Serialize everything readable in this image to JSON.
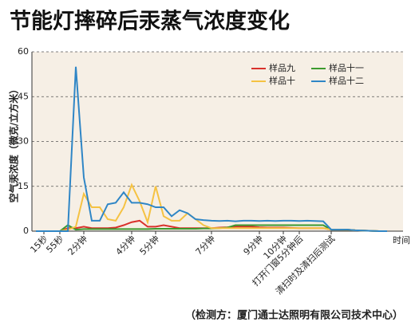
{
  "chart_data": {
    "type": "line",
    "title": "节能灯摔碎后汞蒸气浓度变化",
    "y_label": "空气汞浓度（微克/立方米）",
    "x_label": "时间",
    "footnote": "（检测方：厦门通士达照明有限公司技术中心）",
    "categories": [
      null,
      "15秒",
      null,
      "55秒",
      null,
      null,
      "2分钟",
      null,
      null,
      null,
      null,
      null,
      "4分钟",
      null,
      null,
      "5分钟",
      null,
      null,
      null,
      null,
      null,
      null,
      "7分钟",
      null,
      null,
      null,
      null,
      null,
      "9分钟",
      null,
      null,
      "10分钟",
      null,
      "打开门窗5分钟后",
      null,
      null,
      null,
      "清扫时及清扫后测试",
      null,
      null,
      null,
      null,
      null,
      null,
      null
    ],
    "series": [
      {
        "name": "样品九",
        "color": "#d9312b",
        "values": [
          0,
          0,
          0,
          0,
          1,
          1,
          1.5,
          1,
          1,
          1,
          1.2,
          2,
          3,
          3.5,
          1.5,
          1.5,
          2,
          1.5,
          1,
          1,
          1,
          1,
          1,
          1.2,
          1.3,
          1.5,
          1.5,
          1.5,
          1.3,
          1.2,
          1.2,
          1.2,
          1.1,
          1,
          1,
          1,
          1,
          0.5,
          0.5,
          0.5,
          0.3,
          0.2,
          0.1,
          0,
          0
        ]
      },
      {
        "name": "样品十一",
        "color": "#3c9a2e",
        "values": [
          0,
          0,
          0,
          0,
          2,
          0.5,
          0.7,
          0.7,
          0.7,
          0.7,
          0.7,
          0.7,
          0.7,
          0.7,
          0.7,
          0.8,
          0.8,
          0.8,
          0.8,
          0.8,
          0.8,
          0.9,
          0.9,
          1,
          1.2,
          2,
          2,
          2,
          2,
          2,
          2,
          2,
          2,
          2,
          2,
          2,
          2,
          0.5,
          0.5,
          0.5,
          0.3,
          0.2,
          0.1,
          0,
          0
        ]
      },
      {
        "name": "样品十",
        "color": "#f5c242",
        "values": [
          0,
          0,
          0,
          0,
          0.5,
          1.5,
          12.5,
          8,
          8,
          4,
          3.5,
          8,
          15.5,
          10,
          3,
          15,
          5,
          3.5,
          3.5,
          6,
          4,
          2,
          1,
          1,
          1,
          1,
          1,
          1,
          1,
          1,
          1,
          1,
          1,
          1,
          1,
          1,
          1,
          0.5,
          0.5,
          0.4,
          0.3,
          0.2,
          0.1,
          0,
          0
        ]
      },
      {
        "name": "样品十二",
        "color": "#2f86c6",
        "values": [
          0,
          0,
          0,
          0,
          0,
          55,
          18,
          3.5,
          3.5,
          9,
          9.5,
          13,
          9.5,
          9.5,
          9,
          8,
          8,
          5,
          7,
          6,
          4,
          3.7,
          3.5,
          3.4,
          3.5,
          3.3,
          3.5,
          3.5,
          3.4,
          3.5,
          3.4,
          3.5,
          3.5,
          3.4,
          3.5,
          3.4,
          3.3,
          0.5,
          0.5,
          0.5,
          0.3,
          0.2,
          0.1,
          0,
          0
        ]
      }
    ],
    "ylim": [
      0,
      60
    ],
    "yticks": [
      0,
      15,
      30,
      45,
      60
    ],
    "grid": true
  }
}
